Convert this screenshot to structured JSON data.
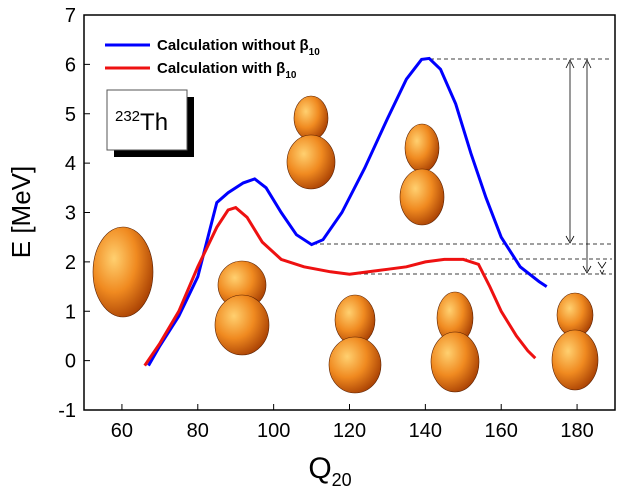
{
  "chart_data": {
    "type": "line",
    "y_label": "E [MeV]",
    "x_label": {
      "text": "Q",
      "sub": "20"
    },
    "annotation": {
      "sup": "232",
      "text": "Th"
    },
    "xlim": [
      50,
      190
    ],
    "xticks": [
      60,
      80,
      100,
      120,
      140,
      160,
      180
    ],
    "ylim": [
      -1,
      7
    ],
    "yticks": [
      -1,
      0,
      1,
      2,
      3,
      4,
      5,
      6,
      7
    ],
    "series": [
      {
        "name": "Calculation without β",
        "name_sub": "10",
        "color": "#0000ff",
        "x": [
          67,
          70,
          75,
          80,
          84,
          85,
          88,
          92,
          95,
          98,
          102,
          106,
          110,
          113,
          118,
          124,
          130,
          135,
          139,
          141,
          144,
          148,
          152,
          156,
          160,
          165,
          170,
          172
        ],
        "values": [
          -0.1,
          0.3,
          0.9,
          1.7,
          2.9,
          3.2,
          3.4,
          3.6,
          3.68,
          3.5,
          3.0,
          2.55,
          2.35,
          2.45,
          3.0,
          3.9,
          4.9,
          5.7,
          6.1,
          6.12,
          5.9,
          5.2,
          4.2,
          3.3,
          2.5,
          1.9,
          1.6,
          1.5
        ]
      },
      {
        "name": "Calculation with β",
        "name_sub": "10",
        "color": "#ee1111",
        "x": [
          66,
          70,
          75,
          80,
          85,
          88,
          90,
          93,
          97,
          102,
          108,
          115,
          120,
          125,
          130,
          135,
          140,
          145,
          150,
          154,
          157,
          160,
          164,
          167,
          169
        ],
        "values": [
          -0.1,
          0.35,
          1.0,
          1.9,
          2.7,
          3.05,
          3.1,
          2.9,
          2.4,
          2.05,
          1.9,
          1.8,
          1.75,
          1.8,
          1.85,
          1.9,
          2.0,
          2.05,
          2.05,
          1.95,
          1.5,
          1.0,
          0.5,
          0.2,
          0.05
        ]
      }
    ]
  }
}
